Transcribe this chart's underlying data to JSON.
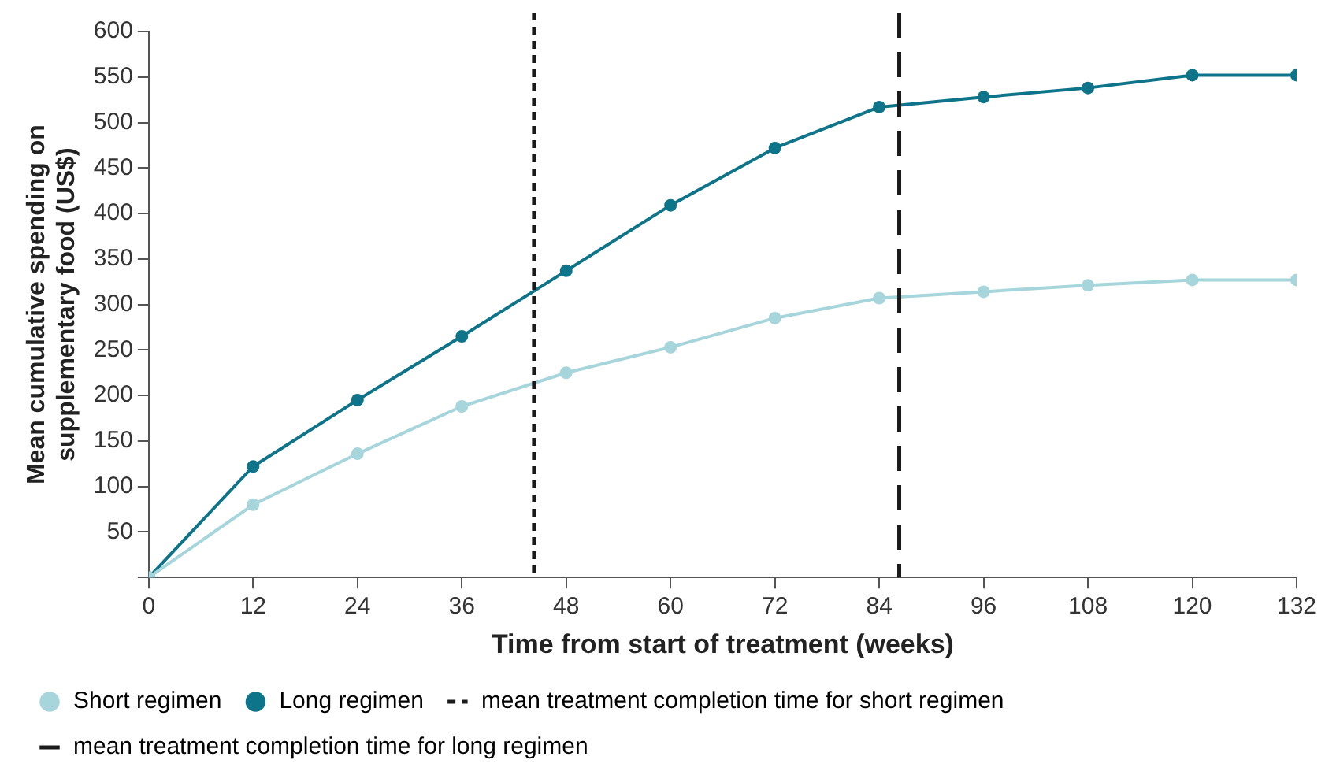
{
  "chart_data": {
    "type": "line",
    "xlabel": "Time from start of treatment (weeks)",
    "ylabel": "Mean cumulative spending on supplementary food (US$)",
    "x": [
      0,
      12,
      24,
      36,
      48,
      60,
      72,
      84,
      96,
      108,
      120,
      132
    ],
    "series": [
      {
        "name": "Short regimen",
        "color": "#a6d5dc",
        "values": [
          0,
          80,
          136,
          188,
          225,
          253,
          285,
          307,
          314,
          321,
          327,
          327
        ]
      },
      {
        "name": "Long regimen",
        "color": "#0e7489",
        "values": [
          0,
          122,
          195,
          265,
          337,
          409,
          472,
          517,
          528,
          538,
          552,
          552
        ]
      }
    ],
    "xlim": [
      0,
      132
    ],
    "xticks": [
      0,
      12,
      24,
      36,
      48,
      60,
      72,
      84,
      96,
      108,
      120,
      132
    ],
    "ylim": [
      0,
      600
    ],
    "yticks": [
      {
        "value": 0,
        "label": null
      },
      50,
      100,
      150,
      200,
      250,
      300,
      350,
      400,
      450,
      500,
      550,
      600
    ],
    "ref_lines": [
      {
        "axis": "x",
        "value": 44.3,
        "label": "mean treatment completion time for short regimen",
        "color": "#1a1a1a",
        "line_style": "dotted"
      },
      {
        "axis": "x",
        "value": 86.3,
        "label": "mean treatment completion time for long regimen",
        "color": "#1a1a1a",
        "line_style": "dashed"
      }
    ],
    "grid": false,
    "legend": "bottom",
    "marker": "circle",
    "line_style": "solid"
  }
}
